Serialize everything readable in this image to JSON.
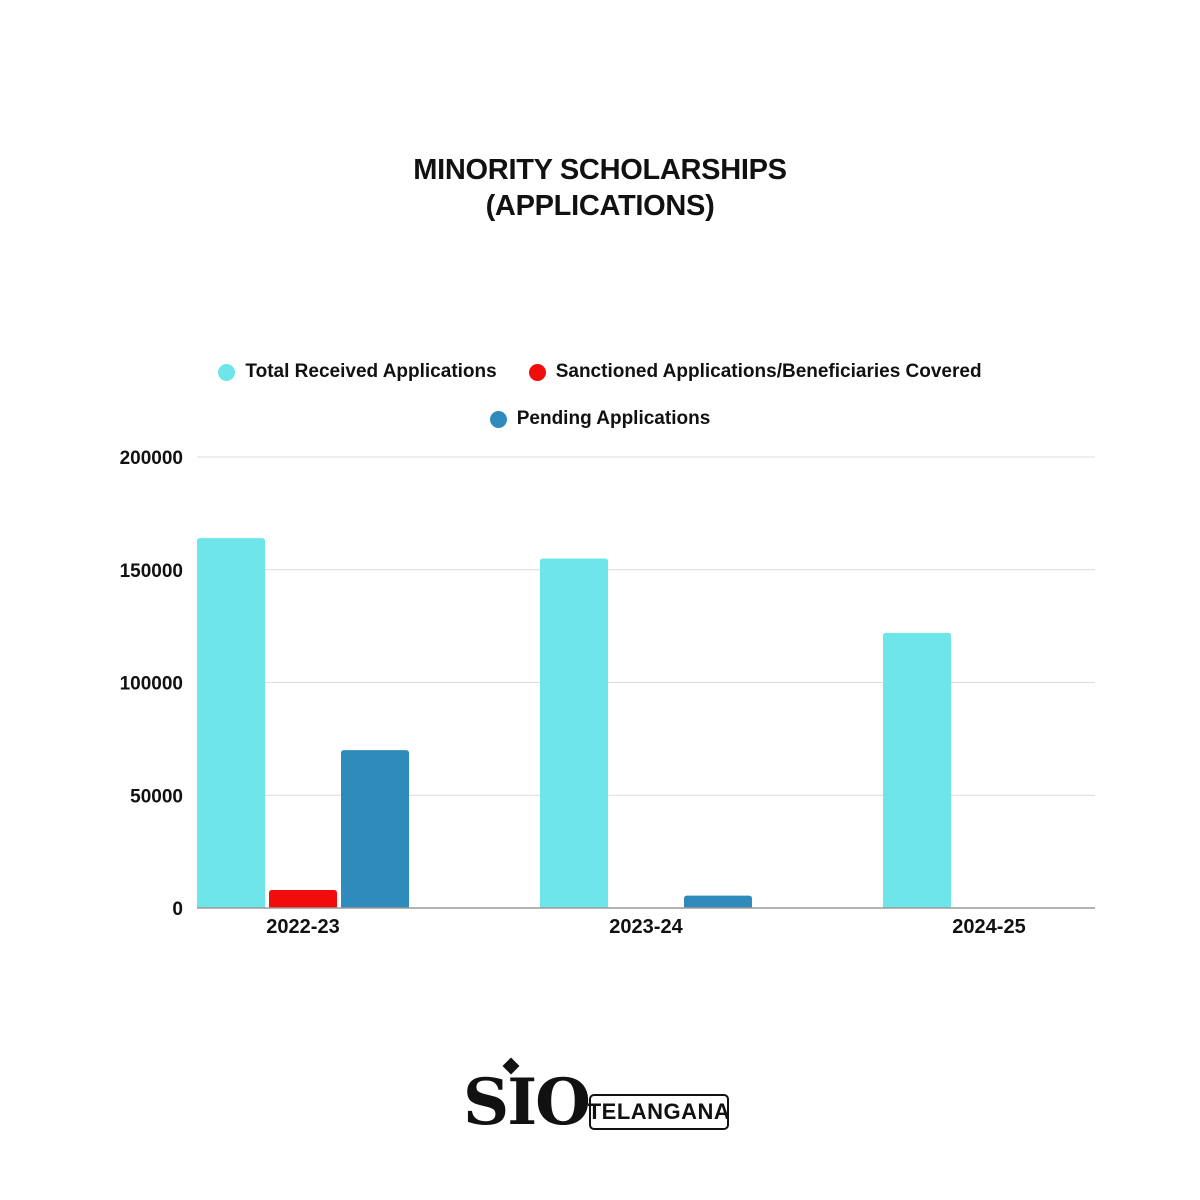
{
  "chart_data": {
    "type": "bar",
    "title": [
      "MINORITY SCHOLARSHIPS",
      "(APPLICATIONS)"
    ],
    "categories": [
      "2022-23",
      "2023-24",
      "2024-25"
    ],
    "series": [
      {
        "name": "Total Received Applications",
        "color": "#6ee5e8",
        "values": [
          164000,
          155000,
          122000
        ]
      },
      {
        "name": "Sanctioned Applications/Beneficiaries Covered",
        "color": "#f20c0c",
        "values": [
          8000,
          null,
          null
        ]
      },
      {
        "name": "Pending Applications",
        "color": "#2f8bbb",
        "values": [
          70000,
          5500,
          null
        ]
      }
    ],
    "ylim": [
      0,
      200000
    ],
    "yticks": [
      "0",
      "50000",
      "100000",
      "150000",
      "200000"
    ],
    "grid": true,
    "legend_position": "top"
  },
  "logo": {
    "mark": "SIO",
    "region": "TELANGANA"
  }
}
